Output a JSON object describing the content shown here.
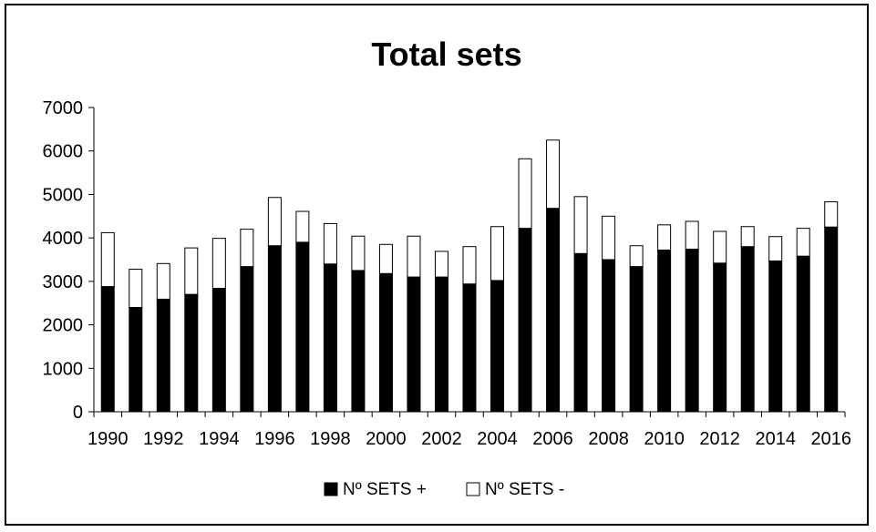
{
  "chart_data": {
    "type": "bar",
    "stacked": true,
    "title": "Total sets",
    "xlabel": "",
    "ylabel": "",
    "ylim": [
      0,
      7000
    ],
    "yticks": [
      0,
      1000,
      2000,
      3000,
      4000,
      5000,
      6000,
      7000
    ],
    "categories": [
      "1990",
      "1991",
      "1992",
      "1993",
      "1994",
      "1995",
      "1996",
      "1997",
      "1998",
      "1999",
      "2000",
      "2001",
      "2002",
      "2003",
      "2004",
      "2005",
      "2006",
      "2007",
      "2008",
      "2009",
      "2010",
      "2011",
      "2012",
      "2013",
      "2014",
      "2015",
      "2016"
    ],
    "xtick_labels": [
      "1990",
      "1992",
      "1994",
      "1996",
      "1998",
      "2000",
      "2002",
      "2004",
      "2006",
      "2008",
      "2010",
      "2012",
      "2014",
      "2016"
    ],
    "series": [
      {
        "name": "Nº SETS +",
        "color": "#000000",
        "values": [
          2880,
          2400,
          2590,
          2700,
          2840,
          3340,
          3820,
          3900,
          3400,
          3250,
          3180,
          3100,
          3100,
          2940,
          3020,
          4220,
          4680,
          3640,
          3500,
          3340,
          3720,
          3740,
          3420,
          3800,
          3470,
          3580,
          4250
        ]
      },
      {
        "name": "Nº SETS -",
        "color": "#ffffff",
        "values": [
          1240,
          880,
          820,
          1070,
          1150,
          860,
          1110,
          710,
          930,
          790,
          670,
          940,
          590,
          860,
          1240,
          1600,
          1570,
          1310,
          1000,
          480,
          580,
          640,
          730,
          460,
          560,
          640,
          580
        ]
      }
    ],
    "legend_position": "bottom",
    "grid": false
  }
}
